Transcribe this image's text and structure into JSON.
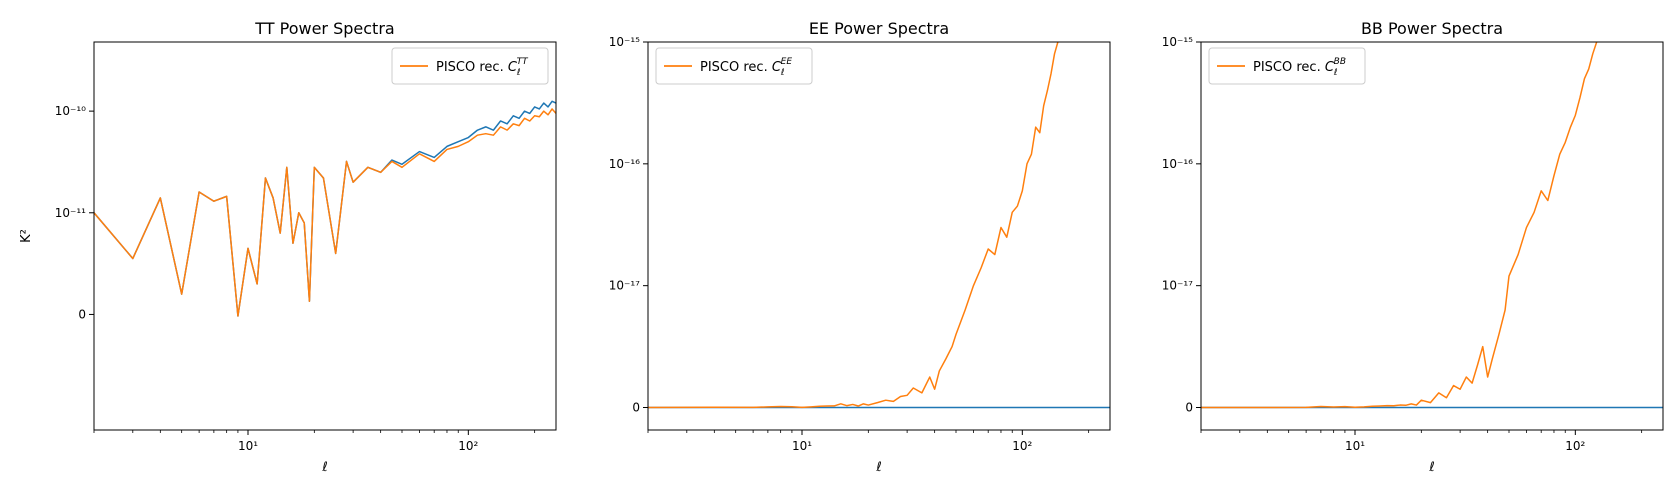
{
  "chart_data": [
    {
      "type": "line",
      "title": "TT Power Spectra",
      "xlabel": "ℓ",
      "ylabel": "K²",
      "xscale": "log",
      "yscale": "symlog",
      "xlim": [
        2,
        250
      ],
      "xticks": [
        {
          "value": 10,
          "label": "10¹"
        },
        {
          "value": 100,
          "label": "10²"
        }
      ],
      "yticks": [
        {
          "value": 1e-10,
          "label": "10⁻¹⁰"
        },
        {
          "value": 1e-11,
          "label": "10⁻¹¹"
        },
        {
          "value": 0,
          "label": "0"
        }
      ],
      "legend": {
        "label": "PISCO rec. C_ℓ^TT",
        "placement": "top-right"
      },
      "series": [
        {
          "color": "#1f77b4",
          "x": [
            2,
            3,
            4,
            5,
            6,
            7,
            8,
            9,
            10,
            11,
            12,
            13,
            14,
            15,
            16,
            17,
            18,
            19,
            20,
            22,
            25,
            28,
            30,
            35,
            40,
            45,
            50,
            60,
            70,
            80,
            90,
            100,
            110,
            120,
            130,
            140,
            150,
            160,
            170,
            180,
            190,
            200,
            210,
            220,
            230,
            240,
            250
          ],
          "y": [
            1e-11,
            5.5e-12,
            1.4e-11,
            2e-12,
            1.6e-11,
            1.3e-11,
            1.45e-11,
            -1.5e-13,
            6.5e-12,
            3e-12,
            2.2e-11,
            1.4e-11,
            8e-12,
            2.8e-11,
            7e-12,
            1e-11,
            9e-12,
            1.3e-12,
            2.8e-11,
            2.2e-11,
            6e-12,
            3.2e-11,
            2e-11,
            2.8e-11,
            2.5e-11,
            3.3e-11,
            3e-11,
            4e-11,
            3.5e-11,
            4.5e-11,
            5e-11,
            5.5e-11,
            6.5e-11,
            7e-11,
            6.5e-11,
            8e-11,
            7.5e-11,
            9e-11,
            8.5e-11,
            1e-10,
            9.5e-11,
            1.1e-10,
            1.05e-10,
            1.2e-10,
            1.1e-10,
            1.25e-10,
            1.2e-10
          ]
        },
        {
          "name": "PISCO rec. C_ℓ^TT",
          "color": "#ff7f0e",
          "x": [
            2,
            3,
            4,
            5,
            6,
            7,
            8,
            9,
            10,
            11,
            12,
            13,
            14,
            15,
            16,
            17,
            18,
            19,
            20,
            22,
            25,
            28,
            30,
            35,
            40,
            45,
            50,
            60,
            70,
            80,
            90,
            100,
            110,
            120,
            130,
            140,
            150,
            160,
            170,
            180,
            190,
            200,
            210,
            220,
            230,
            240,
            250
          ],
          "y": [
            1e-11,
            5.5e-12,
            1.4e-11,
            2e-12,
            1.6e-11,
            1.3e-11,
            1.45e-11,
            -1.5e-13,
            6.5e-12,
            3e-12,
            2.2e-11,
            1.4e-11,
            8e-12,
            2.8e-11,
            7e-12,
            1e-11,
            9e-12,
            1.3e-12,
            2.8e-11,
            2.2e-11,
            6e-12,
            3.2e-11,
            2e-11,
            2.8e-11,
            2.5e-11,
            3.2e-11,
            2.8e-11,
            3.8e-11,
            3.2e-11,
            4.2e-11,
            4.5e-11,
            5e-11,
            5.8e-11,
            6e-11,
            5.8e-11,
            7e-11,
            6.5e-11,
            7.5e-11,
            7.2e-11,
            8.5e-11,
            8e-11,
            9e-11,
            8.8e-11,
            1e-10,
            9.2e-11,
            1.05e-10,
            9.5e-11
          ]
        }
      ]
    },
    {
      "type": "line",
      "title": "EE Power Spectra",
      "xlabel": "ℓ",
      "ylabel": "",
      "xscale": "log",
      "yscale": "symlog",
      "xlim": [
        2,
        250
      ],
      "xticks": [
        {
          "value": 10,
          "label": "10¹"
        },
        {
          "value": 100,
          "label": "10²"
        }
      ],
      "yticks": [
        {
          "value": 1e-15,
          "label": "10⁻¹⁵"
        },
        {
          "value": 1e-16,
          "label": "10⁻¹⁶"
        },
        {
          "value": 1e-17,
          "label": "10⁻¹⁷"
        },
        {
          "value": 0,
          "label": "0"
        }
      ],
      "legend": {
        "label": "PISCO rec. C_ℓ^EE",
        "placement": "top-left"
      },
      "series": [
        {
          "color": "#1f77b4",
          "x": [
            2,
            250
          ],
          "y": [
            0,
            0
          ]
        },
        {
          "name": "PISCO rec. C_ℓ^EE",
          "color": "#ff7f0e",
          "x": [
            2,
            4,
            6,
            7,
            8,
            9,
            10,
            11,
            12,
            13,
            14,
            15,
            16,
            17,
            18,
            19,
            20,
            22,
            24,
            26,
            28,
            30,
            32,
            35,
            38,
            40,
            42,
            45,
            48,
            50,
            55,
            60,
            65,
            70,
            75,
            80,
            85,
            90,
            95,
            100,
            105,
            110,
            115,
            120,
            125,
            130,
            135,
            140,
            145
          ],
          "y": [
            0,
            2e-20,
            1e-20,
            5e-20,
            8e-20,
            6e-20,
            1e-20,
            5e-20,
            1e-19,
            1.2e-19,
            1.3e-19,
            3e-19,
            1.5e-19,
            2.5e-19,
            1.2e-19,
            3e-19,
            2e-19,
            4e-19,
            6e-19,
            5e-19,
            9e-19,
            1e-18,
            1.6e-18,
            1.2e-18,
            2.5e-18,
            1.5e-18,
            3e-18,
            4e-18,
            5e-18,
            6e-18,
            8e-18,
            1e-17,
            1.4e-17,
            2e-17,
            1.8e-17,
            3e-17,
            2.5e-17,
            4e-17,
            4.5e-17,
            6e-17,
            1e-16,
            1.2e-16,
            2e-16,
            1.8e-16,
            3e-16,
            4e-16,
            5.5e-16,
            8e-16,
            1e-15
          ]
        }
      ]
    },
    {
      "type": "line",
      "title": "BB Power Spectra",
      "xlabel": "ℓ",
      "ylabel": "",
      "xscale": "log",
      "yscale": "symlog",
      "xlim": [
        2,
        250
      ],
      "xticks": [
        {
          "value": 10,
          "label": "10¹"
        },
        {
          "value": 100,
          "label": "10²"
        }
      ],
      "yticks": [
        {
          "value": 1e-15,
          "label": "10⁻¹⁵"
        },
        {
          "value": 1e-16,
          "label": "10⁻¹⁶"
        },
        {
          "value": 1e-17,
          "label": "10⁻¹⁷"
        },
        {
          "value": 0,
          "label": "0"
        }
      ],
      "legend": {
        "label": "PISCO rec. C_ℓ^BB",
        "placement": "top-left"
      },
      "series": [
        {
          "color": "#1f77b4",
          "x": [
            2,
            250
          ],
          "y": [
            0,
            0
          ]
        },
        {
          "name": "PISCO rec. C_ℓ^BB",
          "color": "#ff7f0e",
          "x": [
            2,
            4,
            6,
            7,
            8,
            9,
            10,
            11,
            12,
            13,
            14,
            15,
            16,
            17,
            18,
            19,
            20,
            22,
            24,
            26,
            28,
            30,
            32,
            34,
            36,
            38,
            40,
            42,
            45,
            48,
            50,
            55,
            60,
            65,
            70,
            75,
            80,
            85,
            90,
            95,
            100,
            105,
            110,
            115,
            120,
            125
          ],
          "y": [
            0,
            0,
            1e-20,
            8e-20,
            4e-20,
            7e-20,
            2e-20,
            5e-20,
            1e-19,
            1.2e-19,
            1.5e-19,
            1.4e-19,
            2e-19,
            1.8e-19,
            3e-19,
            2e-19,
            6e-19,
            4e-19,
            1.2e-18,
            8e-19,
            1.8e-18,
            1.5e-18,
            2.5e-18,
            2e-18,
            3.5e-18,
            5e-18,
            2.5e-18,
            4e-18,
            6e-18,
            8e-18,
            1.2e-17,
            1.8e-17,
            3e-17,
            4e-17,
            6e-17,
            5e-17,
            8e-17,
            1.2e-16,
            1.5e-16,
            2e-16,
            2.5e-16,
            3.5e-16,
            5e-16,
            6e-16,
            8e-16,
            1e-15
          ]
        }
      ]
    }
  ]
}
